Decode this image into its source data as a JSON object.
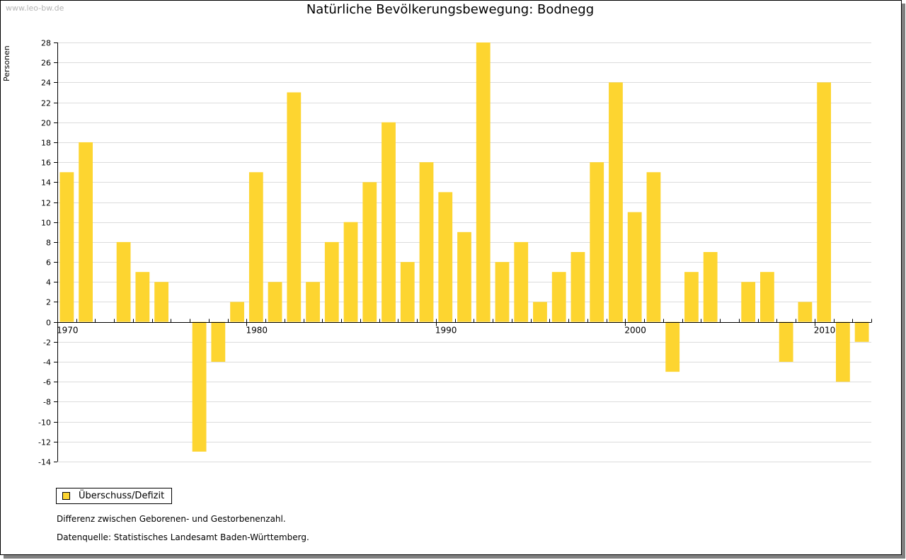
{
  "watermark": "www.leo-bw.de",
  "footnote": "Differenz zwischen Geborenen- und Gestorbenenzahl.",
  "source": "Datenquelle: Statistisches Landesamt Baden-Württemberg.",
  "colors": {
    "bar": "#FDD530",
    "grid": "#dcdcdc",
    "axis": "#000000"
  },
  "chart_data": {
    "type": "bar",
    "title": "Natürliche Bevölkerungsbewegung: Bodnegg",
    "ylabel": "Personen",
    "xlabel": "",
    "ylim": [
      -14,
      28
    ],
    "ytick_step": 2,
    "xlim": [
      1970,
      2013
    ],
    "xticks": [
      1970,
      1980,
      1990,
      2000,
      2010
    ],
    "grid": true,
    "legend_position": "bottom-left",
    "series": [
      {
        "name": "Überschuss/Defizit",
        "x": [
          1970,
          1971,
          1972,
          1973,
          1974,
          1975,
          1976,
          1977,
          1978,
          1979,
          1980,
          1981,
          1982,
          1983,
          1984,
          1985,
          1986,
          1987,
          1988,
          1989,
          1990,
          1991,
          1992,
          1993,
          1994,
          1995,
          1996,
          1997,
          1998,
          1999,
          2000,
          2001,
          2002,
          2003,
          2004,
          2005,
          2006,
          2007,
          2008,
          2009,
          2010,
          2011,
          2012
        ],
        "values": [
          15,
          18,
          0,
          8,
          5,
          4,
          0,
          -13,
          -4,
          2,
          15,
          4,
          23,
          4,
          8,
          10,
          14,
          20,
          6,
          16,
          13,
          9,
          28,
          6,
          8,
          2,
          5,
          7,
          16,
          24,
          11,
          15,
          -5,
          5,
          7,
          0,
          4,
          5,
          -4,
          2,
          24,
          -6,
          -2
        ]
      }
    ]
  }
}
